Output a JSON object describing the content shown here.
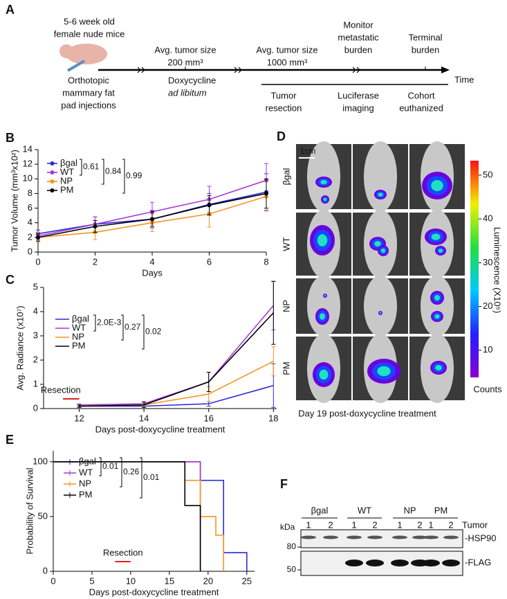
{
  "panel_a": {
    "label": "A",
    "time_label": "Time",
    "items": [
      {
        "lines": [
          "5-6 week old",
          "female nude mice"
        ]
      },
      {
        "lines": [
          "Orthotopic",
          "mammary fat",
          "pad injections"
        ]
      },
      {
        "lines": [
          "Avg. tumor size",
          "200 mm³"
        ]
      },
      {
        "lines": [
          "Doxycycline",
          "ad libitum"
        ]
      },
      {
        "lines": [
          "Avg. tumor size",
          "1000 mm³"
        ]
      },
      {
        "lines": [
          "Tumor",
          "resection"
        ]
      },
      {
        "lines": [
          "Monitor",
          "metastatic",
          "burden"
        ]
      },
      {
        "lines": [
          "Luciferase",
          "imaging"
        ]
      },
      {
        "lines": [
          "Terminal",
          "burden"
        ]
      },
      {
        "lines": [
          "Cohort",
          "euthanized"
        ]
      }
    ]
  },
  "chart_data": [
    {
      "type": "line",
      "label": "B",
      "x_label": "Days",
      "y_label": "Tumor Volume (mm³x10²)",
      "x": [
        0,
        2,
        4,
        6,
        8
      ],
      "xlim": [
        0,
        8
      ],
      "xticks": [
        0,
        2,
        4,
        6,
        8
      ],
      "ylim": [
        0,
        14
      ],
      "yticks": [
        0,
        2,
        4,
        6,
        8,
        10,
        12,
        14
      ],
      "markers": true,
      "p_values": [
        "0.61",
        "0.84",
        "0.99"
      ],
      "series": [
        {
          "name": "βgal",
          "color": "#2b2bd6",
          "values": [
            2.5,
            3.8,
            4.5,
            6.5,
            8.2
          ],
          "errors": [
            0.5,
            1.0,
            1.2,
            1.5,
            2.5
          ]
        },
        {
          "name": "WT",
          "color": "#a23ad8",
          "values": [
            2.2,
            3.8,
            5.5,
            7.2,
            9.8
          ],
          "errors": [
            0.5,
            1.0,
            1.3,
            1.8,
            2.3
          ]
        },
        {
          "name": "NP",
          "color": "#f7941d",
          "values": [
            2.0,
            2.7,
            4.0,
            5.2,
            7.6
          ],
          "errors": [
            0.6,
            1.0,
            1.2,
            1.8,
            2.0
          ]
        },
        {
          "name": "PM",
          "color": "#000000",
          "values": [
            2.0,
            3.5,
            4.5,
            6.4,
            8.0
          ],
          "errors": [
            0.5,
            0.8,
            1.0,
            1.3,
            2.0
          ]
        }
      ]
    },
    {
      "type": "line",
      "label": "C",
      "x_label": "Days post-doxycycline treatment",
      "y_label": "Avg. Radiance (x10⁷)",
      "x": [
        12,
        14,
        16,
        18
      ],
      "xlim": [
        10.9,
        18.1
      ],
      "xticks": [
        12,
        14,
        16,
        18
      ],
      "ylim": [
        0,
        5
      ],
      "yticks": [
        0,
        1,
        2,
        3,
        4,
        5
      ],
      "markers": false,
      "p_values": [
        "2.0E-3",
        "0.27",
        "0.02"
      ],
      "resection": {
        "label": "Resection",
        "span": [
          11.5,
          12
        ]
      },
      "series": [
        {
          "name": "βgal",
          "color": "#2b2bd6",
          "values": [
            0.1,
            0.1,
            0.2,
            0.95
          ],
          "errors": [
            0.05,
            0.05,
            0.1,
            0.9
          ]
        },
        {
          "name": "WT",
          "color": "#a23ad8",
          "values": [
            0.15,
            0.2,
            1.1,
            4.25
          ],
          "errors": [
            0.05,
            0.1,
            0.4,
            1.0
          ]
        },
        {
          "name": "NP",
          "color": "#f7941d",
          "values": [
            0.1,
            0.15,
            0.6,
            1.95
          ],
          "errors": [
            0.05,
            0.05,
            0.3,
            0.6
          ]
        },
        {
          "name": "PM",
          "color": "#000000",
          "values": [
            0.1,
            0.15,
            1.1,
            3.95
          ],
          "errors": [
            0.05,
            0.1,
            0.4,
            1.3
          ]
        }
      ]
    },
    {
      "type": "step",
      "label": "E",
      "x_label": "Days post-doxycycline treatment",
      "y_label": "Probability of Survival",
      "xlim": [
        0,
        26
      ],
      "xticks": [
        0,
        5,
        10,
        15,
        20,
        25
      ],
      "ylim": [
        0,
        110
      ],
      "yticks": [
        0,
        50,
        100
      ],
      "p_values": [
        "0.01",
        "0.26",
        "0.01"
      ],
      "resection": {
        "label": "Resection",
        "span": [
          8,
          10
        ]
      },
      "series": [
        {
          "name": "βgal",
          "color": "#2b2bd6",
          "x": [
            0,
            19,
            22,
            25
          ],
          "values": [
            100,
            83,
            17,
            0
          ]
        },
        {
          "name": "WT",
          "color": "#a23ad8",
          "x": [
            0,
            19
          ],
          "values": [
            100,
            0
          ]
        },
        {
          "name": "NP",
          "color": "#f7941d",
          "x": [
            0,
            17,
            19,
            21,
            22
          ],
          "values": [
            100,
            83,
            50,
            33,
            0
          ]
        },
        {
          "name": "PM",
          "color": "#000000",
          "x": [
            0,
            17,
            19
          ],
          "values": [
            100,
            60,
            0
          ]
        }
      ]
    }
  ],
  "panel_d": {
    "label": "D",
    "rows": [
      "βgal",
      "WT",
      "NP",
      "PM"
    ],
    "scale_bar": "1cm",
    "colorbar": {
      "title": "Luminescence (X10⁵)",
      "unit": "Counts",
      "ylim": [
        3.8,
        53.3
      ],
      "yticks": [
        10,
        20,
        30,
        40,
        50
      ]
    },
    "caption": "Day 19 post-doxycycline treatment"
  },
  "panel_f": {
    "label": "F",
    "groups": [
      "βgal",
      "WT",
      "NP",
      "PM"
    ],
    "lanes": [
      "1",
      "2",
      "1",
      "2",
      "1",
      "2",
      "1",
      "2"
    ],
    "lane_title": "Tumor",
    "kda_label": "kDa",
    "markers": [
      "80",
      "50"
    ],
    "bands": [
      "-HSP90",
      "-FLAG"
    ]
  }
}
